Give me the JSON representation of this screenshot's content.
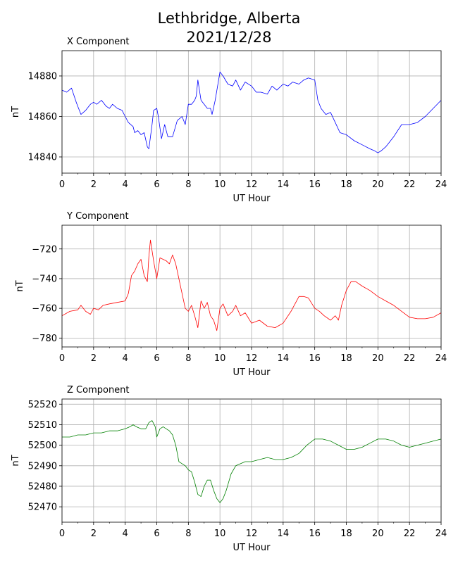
{
  "title": {
    "line1": "Lethbridge, Alberta",
    "line2": "2021/12/28"
  },
  "chart_data": [
    {
      "type": "line",
      "title": "X Component",
      "xlabel": "UT Hour",
      "ylabel": "nT",
      "xlim": [
        0,
        24
      ],
      "ylim": [
        14832,
        14892.5
      ],
      "xticks": [
        0,
        2,
        4,
        6,
        8,
        10,
        12,
        14,
        16,
        18,
        20,
        22,
        24
      ],
      "yticks": [
        14840,
        14860,
        14880
      ],
      "grid": true,
      "color": "#0000ff",
      "x": [
        0,
        0.3,
        0.6,
        0.9,
        1.0,
        1.2,
        1.5,
        1.8,
        2.0,
        2.2,
        2.5,
        2.8,
        3.0,
        3.2,
        3.5,
        3.8,
        4.0,
        4.2,
        4.5,
        4.6,
        4.8,
        5.0,
        5.2,
        5.4,
        5.5,
        5.7,
        5.8,
        6.0,
        6.1,
        6.3,
        6.5,
        6.7,
        7.0,
        7.3,
        7.6,
        7.8,
        8.0,
        8.2,
        8.4,
        8.5,
        8.6,
        8.8,
        9.0,
        9.2,
        9.4,
        9.5,
        9.7,
        10.0,
        10.2,
        10.5,
        10.8,
        11.0,
        11.3,
        11.6,
        12.0,
        12.3,
        12.6,
        13.0,
        13.3,
        13.6,
        14.0,
        14.3,
        14.6,
        15.0,
        15.3,
        15.6,
        16.0,
        16.2,
        16.4,
        16.7,
        17.0,
        17.3,
        17.6,
        18.0,
        18.5,
        19.0,
        19.5,
        19.8,
        20.0,
        20.2,
        20.5,
        21.0,
        21.5,
        22.0,
        22.5,
        23.0,
        23.5,
        24.0
      ],
      "y": [
        14873,
        14872,
        14874,
        14867,
        14865,
        14861,
        14863,
        14866,
        14867,
        14866,
        14868,
        14865,
        14864,
        14866,
        14864,
        14863,
        14860,
        14857,
        14855,
        14852,
        14853,
        14851,
        14852,
        14845,
        14844,
        14856,
        14863,
        14864,
        14860,
        14849,
        14856,
        14850,
        14850,
        14858,
        14860,
        14856,
        14866,
        14866,
        14868,
        14870,
        14878,
        14868,
        14866,
        14864,
        14864,
        14861,
        14868,
        14882,
        14880,
        14876,
        14875,
        14878,
        14873,
        14877,
        14875,
        14872,
        14872,
        14871,
        14875,
        14873,
        14876,
        14875,
        14877,
        14876,
        14878,
        14879,
        14878,
        14868,
        14864,
        14861,
        14862,
        14857,
        14852,
        14851,
        14848,
        14846,
        14844,
        14843,
        14842,
        14843,
        14845,
        14850,
        14856,
        14856,
        14857,
        14860,
        14864,
        14868
      ]
    },
    {
      "type": "line",
      "title": "Y Component",
      "xlabel": "UT Hour",
      "ylabel": "nT",
      "xlim": [
        0,
        24
      ],
      "ylim": [
        -786,
        -704
      ],
      "xticks": [
        0,
        2,
        4,
        6,
        8,
        10,
        12,
        14,
        16,
        18,
        20,
        22,
        24
      ],
      "yticks": [
        -780,
        -760,
        -740,
        -720
      ],
      "grid": true,
      "color": "#ff0000",
      "x": [
        0,
        0.5,
        1.0,
        1.2,
        1.5,
        1.8,
        2.0,
        2.3,
        2.6,
        3.0,
        3.5,
        4.0,
        4.2,
        4.4,
        4.6,
        4.8,
        5.0,
        5.2,
        5.4,
        5.5,
        5.6,
        5.8,
        6.0,
        6.2,
        6.4,
        6.6,
        6.8,
        7.0,
        7.2,
        7.5,
        7.8,
        8.0,
        8.2,
        8.4,
        8.6,
        8.8,
        9.0,
        9.2,
        9.4,
        9.6,
        9.8,
        10.0,
        10.2,
        10.5,
        10.8,
        11.0,
        11.3,
        11.6,
        12.0,
        12.5,
        13.0,
        13.5,
        14.0,
        14.5,
        15.0,
        15.3,
        15.6,
        16.0,
        16.3,
        16.6,
        17.0,
        17.3,
        17.5,
        17.7,
        18.0,
        18.3,
        18.6,
        19.0,
        19.5,
        20.0,
        20.5,
        21.0,
        21.5,
        22.0,
        22.5,
        23.0,
        23.5,
        24.0
      ],
      "y": [
        -765,
        -762,
        -761,
        -758,
        -762,
        -764,
        -760,
        -761,
        -758,
        -757,
        -756,
        -755,
        -750,
        -738,
        -735,
        -730,
        -727,
        -738,
        -742,
        -725,
        -714,
        -728,
        -740,
        -726,
        -727,
        -728,
        -730,
        -724,
        -730,
        -745,
        -760,
        -762,
        -758,
        -765,
        -773,
        -755,
        -760,
        -756,
        -765,
        -768,
        -775,
        -760,
        -757,
        -765,
        -762,
        -758,
        -765,
        -763,
        -770,
        -768,
        -772,
        -773,
        -770,
        -762,
        -752,
        -752,
        -753,
        -760,
        -762,
        -765,
        -768,
        -765,
        -768,
        -758,
        -748,
        -742,
        -742,
        -745,
        -748,
        -752,
        -755,
        -758,
        -762,
        -766,
        -767,
        -767,
        -766,
        -763
      ]
    },
    {
      "type": "line",
      "title": "Z Component",
      "xlabel": "UT Hour",
      "ylabel": "nT",
      "xlim": [
        0,
        24
      ],
      "ylim": [
        52462.5,
        52522.5
      ],
      "xticks": [
        0,
        2,
        4,
        6,
        8,
        10,
        12,
        14,
        16,
        18,
        20,
        22,
        24
      ],
      "yticks": [
        52470,
        52480,
        52490,
        52500,
        52510,
        52520
      ],
      "grid": true,
      "color": "#008000",
      "x": [
        0,
        0.5,
        1.0,
        1.5,
        2.0,
        2.5,
        3.0,
        3.5,
        4.0,
        4.3,
        4.5,
        4.7,
        5.0,
        5.3,
        5.5,
        5.7,
        5.9,
        6.0,
        6.2,
        6.4,
        6.6,
        6.8,
        7.0,
        7.2,
        7.4,
        7.6,
        7.8,
        8.0,
        8.2,
        8.4,
        8.6,
        8.8,
        9.0,
        9.2,
        9.4,
        9.6,
        9.8,
        10.0,
        10.2,
        10.4,
        10.7,
        11.0,
        11.3,
        11.6,
        12.0,
        12.5,
        13.0,
        13.5,
        14.0,
        14.5,
        15.0,
        15.5,
        16.0,
        16.5,
        17.0,
        17.5,
        18.0,
        18.5,
        19.0,
        19.5,
        20.0,
        20.5,
        21.0,
        21.5,
        22.0,
        22.5,
        23.0,
        23.5,
        24.0
      ],
      "y": [
        52504,
        52504,
        52505,
        52505,
        52506,
        52506,
        52507,
        52507,
        52508,
        52509,
        52510,
        52509,
        52508,
        52508,
        52511,
        52512,
        52509,
        52504,
        52508,
        52509,
        52508,
        52507,
        52505,
        52500,
        52492,
        52491,
        52490,
        52488,
        52487,
        52482,
        52476,
        52475,
        52480,
        52483,
        52483,
        52478,
        52474,
        52472,
        52474,
        52478,
        52486,
        52490,
        52491,
        52492,
        52492,
        52493,
        52494,
        52493,
        52493,
        52494,
        52496,
        52500,
        52503,
        52503,
        52502,
        52500,
        52498,
        52498,
        52499,
        52501,
        52503,
        52503,
        52502,
        52500,
        52499,
        52500,
        52501,
        52502,
        52503
      ]
    }
  ]
}
